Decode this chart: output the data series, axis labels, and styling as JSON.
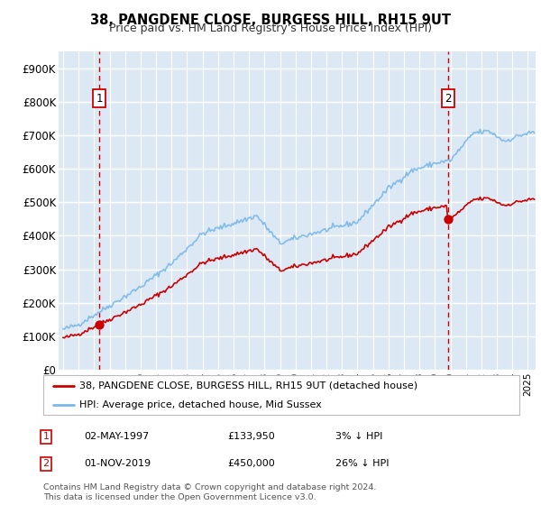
{
  "title": "38, PANGDENE CLOSE, BURGESS HILL, RH15 9UT",
  "subtitle": "Price paid vs. HM Land Registry's House Price Index (HPI)",
  "legend_line1": "38, PANGDENE CLOSE, BURGESS HILL, RH15 9UT (detached house)",
  "legend_line2": "HPI: Average price, detached house, Mid Sussex",
  "annotation1_label": "1",
  "annotation1_date": "02-MAY-1997",
  "annotation1_price": "£133,950",
  "annotation1_hpi": "3% ↓ HPI",
  "annotation2_label": "2",
  "annotation2_date": "01-NOV-2019",
  "annotation2_price": "£450,000",
  "annotation2_hpi": "26% ↓ HPI",
  "footer": "Contains HM Land Registry data © Crown copyright and database right 2024.\nThis data is licensed under the Open Government Licence v3.0.",
  "sale1_year": 1997.35,
  "sale1_value": 133950,
  "sale2_year": 2019.83,
  "sale2_value": 450000,
  "ylim": [
    0,
    950000
  ],
  "yticks": [
    0,
    100000,
    200000,
    300000,
    400000,
    500000,
    600000,
    700000,
    800000,
    900000
  ],
  "ytick_labels": [
    "£0",
    "£100K",
    "£200K",
    "£300K",
    "£400K",
    "£500K",
    "£600K",
    "£700K",
    "£800K",
    "£900K"
  ],
  "background_color": "#dce9f5",
  "plot_bg": "#dce9f5",
  "grid_color": "#ffffff",
  "hpi_color": "#7ab8e8",
  "sale_color": "#cc0000",
  "vline_color": "#cc0000",
  "ann_box_color": "#cc0000",
  "years_start": 1995,
  "years_end": 2025,
  "xlim_start": 1994.7,
  "xlim_end": 2025.5
}
